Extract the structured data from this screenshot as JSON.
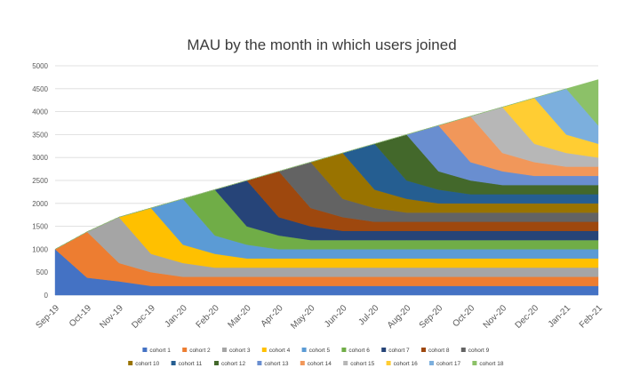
{
  "chart_data": {
    "type": "area",
    "stacked": true,
    "title": "MAU by the month in which users joined",
    "xlabel": "",
    "ylabel": "",
    "ylim": [
      0,
      5000
    ],
    "yticks": [
      0,
      500,
      1000,
      1500,
      2000,
      2500,
      3000,
      3500,
      4000,
      4500,
      5000
    ],
    "grid": true,
    "legend_position": "bottom",
    "categories": [
      "Sep-19",
      "Oct-19",
      "Nov-19",
      "Dec-19",
      "Jan-20",
      "Feb-20",
      "Mar-20",
      "Apr-20",
      "May-20",
      "Jun-20",
      "Jul-20",
      "Aug-20",
      "Sep-20",
      "Oct-20",
      "Nov-20",
      "Dec-20",
      "Jan-21",
      "Feb-21"
    ],
    "series": [
      {
        "name": "cohort 1",
        "color": "#4472C4",
        "values": [
          1000,
          380,
          300,
          200,
          200,
          200,
          200,
          200,
          200,
          200,
          200,
          200,
          200,
          200,
          200,
          200,
          200,
          200
        ]
      },
      {
        "name": "cohort 2",
        "color": "#ED7D31",
        "values": [
          0,
          1000,
          400,
          300,
          200,
          200,
          200,
          200,
          200,
          200,
          200,
          200,
          200,
          200,
          200,
          200,
          200,
          200
        ]
      },
      {
        "name": "cohort 3",
        "color": "#A5A5A5",
        "values": [
          0,
          0,
          1000,
          400,
          300,
          200,
          200,
          200,
          200,
          200,
          200,
          200,
          200,
          200,
          200,
          200,
          200,
          200
        ]
      },
      {
        "name": "cohort 4",
        "color": "#FFC000",
        "values": [
          0,
          0,
          0,
          1000,
          400,
          300,
          200,
          200,
          200,
          200,
          200,
          200,
          200,
          200,
          200,
          200,
          200,
          200
        ]
      },
      {
        "name": "cohort 5",
        "color": "#5B9BD5",
        "values": [
          0,
          0,
          0,
          0,
          1000,
          400,
          300,
          200,
          200,
          200,
          200,
          200,
          200,
          200,
          200,
          200,
          200,
          200
        ]
      },
      {
        "name": "cohort 6",
        "color": "#70AD47",
        "values": [
          0,
          0,
          0,
          0,
          0,
          1000,
          400,
          300,
          200,
          200,
          200,
          200,
          200,
          200,
          200,
          200,
          200,
          200
        ]
      },
      {
        "name": "cohort 7",
        "color": "#264478",
        "values": [
          0,
          0,
          0,
          0,
          0,
          0,
          1000,
          400,
          300,
          200,
          200,
          200,
          200,
          200,
          200,
          200,
          200,
          200
        ]
      },
      {
        "name": "cohort 8",
        "color": "#9E480E",
        "values": [
          0,
          0,
          0,
          0,
          0,
          0,
          0,
          1000,
          400,
          300,
          200,
          200,
          200,
          200,
          200,
          200,
          200,
          200
        ]
      },
      {
        "name": "cohort 9",
        "color": "#636363",
        "values": [
          0,
          0,
          0,
          0,
          0,
          0,
          0,
          0,
          1000,
          400,
          300,
          200,
          200,
          200,
          200,
          200,
          200,
          200
        ]
      },
      {
        "name": "cohort 10",
        "color": "#997300",
        "values": [
          0,
          0,
          0,
          0,
          0,
          0,
          0,
          0,
          0,
          1000,
          400,
          300,
          200,
          200,
          200,
          200,
          200,
          200
        ]
      },
      {
        "name": "cohort 11",
        "color": "#255E91",
        "values": [
          0,
          0,
          0,
          0,
          0,
          0,
          0,
          0,
          0,
          0,
          1000,
          400,
          300,
          200,
          200,
          200,
          200,
          200
        ]
      },
      {
        "name": "cohort 12",
        "color": "#43682B",
        "values": [
          0,
          0,
          0,
          0,
          0,
          0,
          0,
          0,
          0,
          0,
          0,
          1000,
          400,
          300,
          200,
          200,
          200,
          200
        ]
      },
      {
        "name": "cohort 13",
        "color": "#698ED0",
        "values": [
          0,
          0,
          0,
          0,
          0,
          0,
          0,
          0,
          0,
          0,
          0,
          0,
          1000,
          400,
          300,
          200,
          200,
          200
        ]
      },
      {
        "name": "cohort 14",
        "color": "#F1975A",
        "values": [
          0,
          0,
          0,
          0,
          0,
          0,
          0,
          0,
          0,
          0,
          0,
          0,
          0,
          1000,
          400,
          300,
          200,
          200
        ]
      },
      {
        "name": "cohort 15",
        "color": "#B7B7B7",
        "values": [
          0,
          0,
          0,
          0,
          0,
          0,
          0,
          0,
          0,
          0,
          0,
          0,
          0,
          0,
          1000,
          400,
          300,
          200
        ]
      },
      {
        "name": "cohort 16",
        "color": "#FFCD33",
        "values": [
          0,
          0,
          0,
          0,
          0,
          0,
          0,
          0,
          0,
          0,
          0,
          0,
          0,
          0,
          0,
          1000,
          400,
          300
        ]
      },
      {
        "name": "cohort 17",
        "color": "#7CAFDD",
        "values": [
          0,
          0,
          0,
          0,
          0,
          0,
          0,
          0,
          0,
          0,
          0,
          0,
          0,
          0,
          0,
          0,
          1000,
          400
        ]
      },
      {
        "name": "cohort 18",
        "color": "#8CC168",
        "values": [
          0,
          0,
          0,
          0,
          0,
          0,
          0,
          0,
          0,
          0,
          0,
          0,
          0,
          0,
          0,
          0,
          0,
          1000
        ]
      }
    ]
  }
}
